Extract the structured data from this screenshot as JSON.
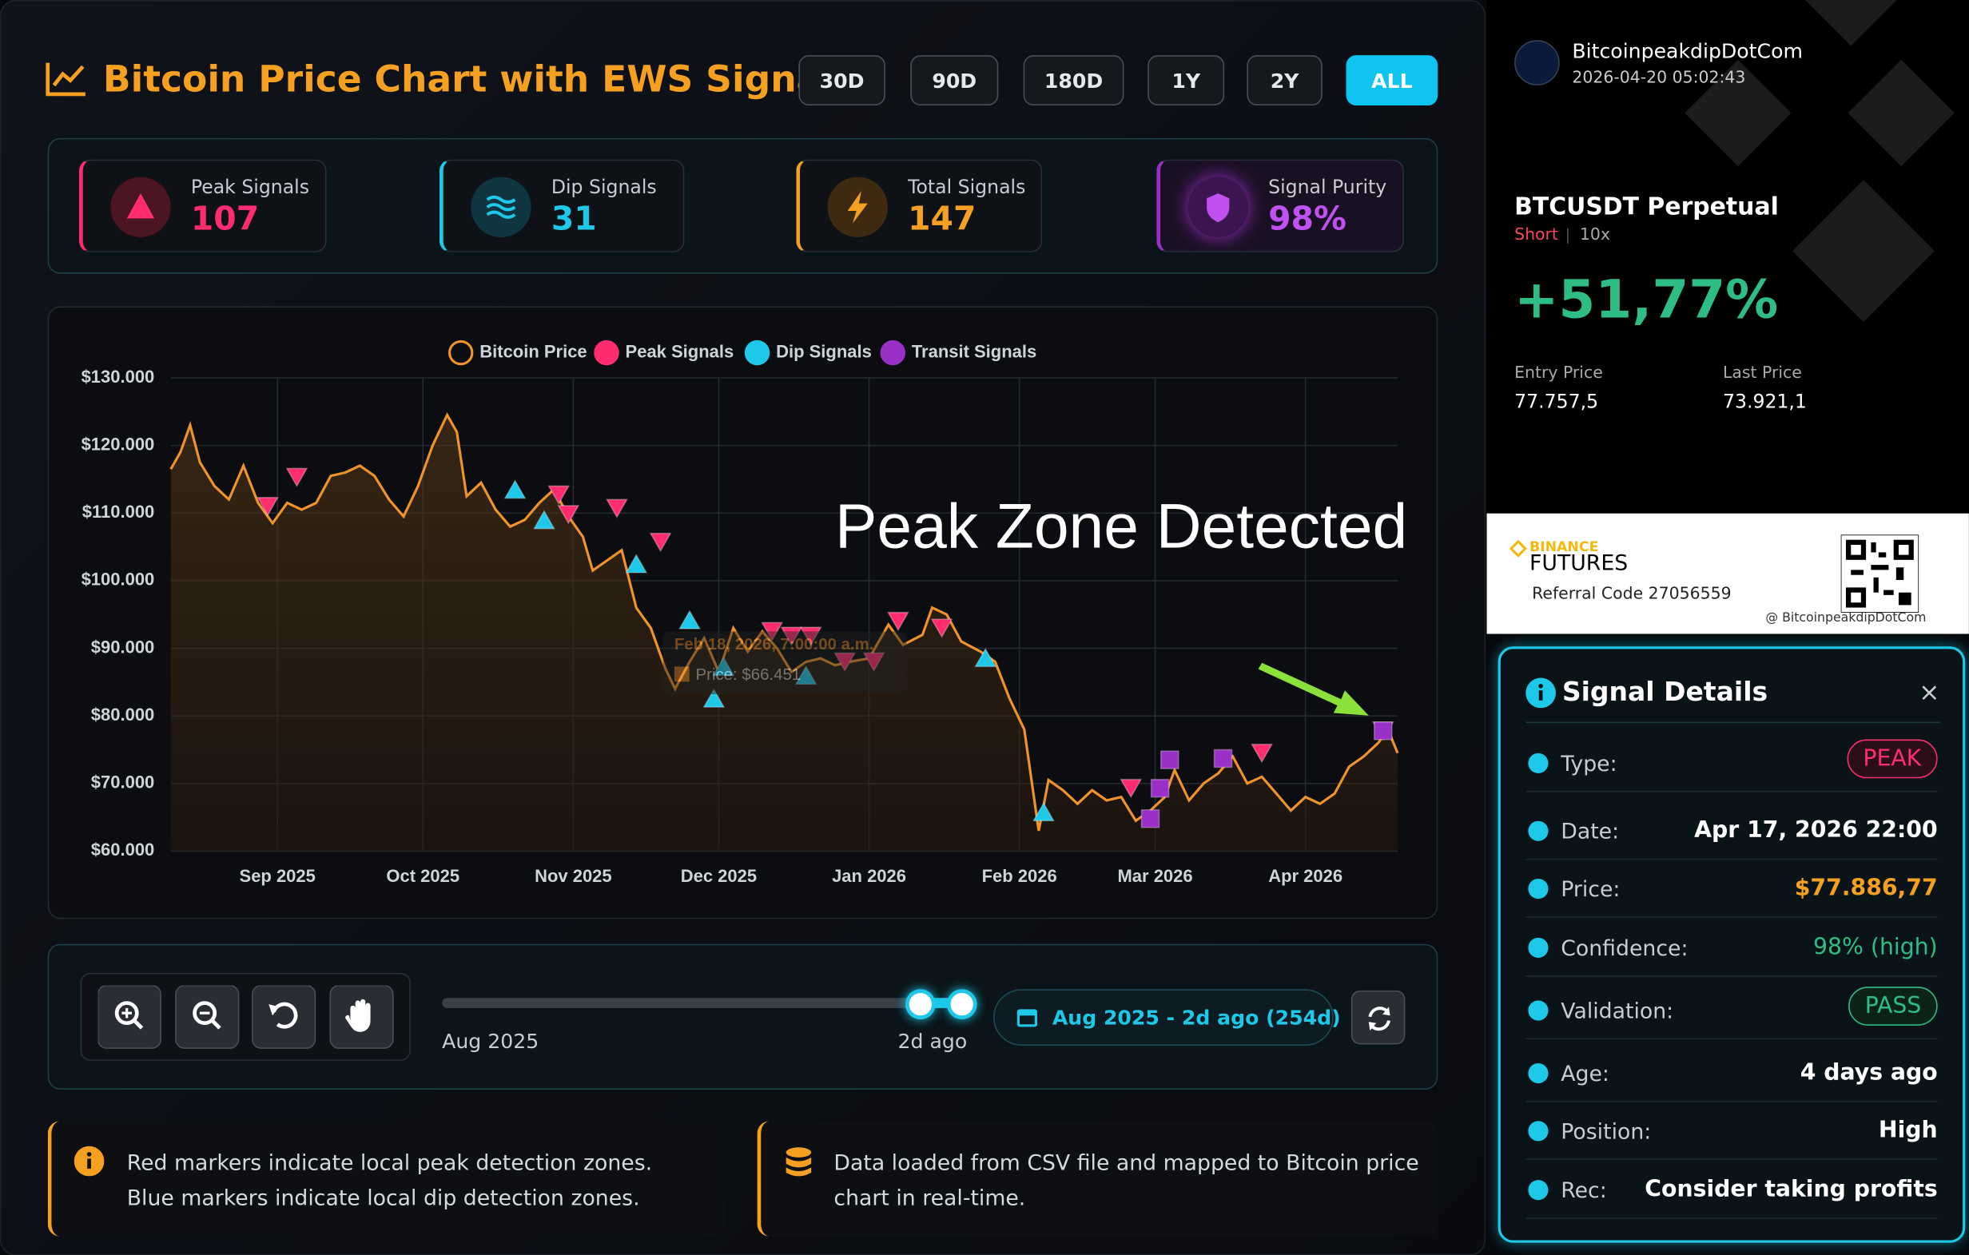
{
  "header": {
    "title": "Bitcoin Price Chart with EWS Signals",
    "ranges": [
      "30D",
      "90D",
      "180D",
      "1Y",
      "2Y",
      "ALL"
    ]
  },
  "stats": [
    {
      "label": "Peak Signals",
      "value": "107"
    },
    {
      "label": "Dip Signals",
      "value": "31"
    },
    {
      "label": "Total Signals",
      "value": "147"
    },
    {
      "label": "Signal Purity",
      "value": "98%"
    }
  ],
  "chart_data": {
    "type": "line",
    "legend": "top",
    "grid": true,
    "xlim": [
      "2025-08-10",
      "2026-04-20"
    ],
    "xticks": [
      {
        "value": "2025-09-01",
        "label": "Sep 2025"
      },
      {
        "value": "2025-10-01",
        "label": "Oct 2025"
      },
      {
        "value": "2025-11-01",
        "label": "Nov 2025"
      },
      {
        "value": "2025-12-01",
        "label": "Dec 2025"
      },
      {
        "value": "2026-01-01",
        "label": "Jan 2026"
      },
      {
        "value": "2026-02-01",
        "label": "Feb 2026"
      },
      {
        "value": "2026-03-01",
        "label": "Mar 2026"
      },
      {
        "value": "2026-04-01",
        "label": "Apr 2026"
      }
    ],
    "ylim": [
      60000,
      130000
    ],
    "yticks": [
      {
        "value": 60000,
        "label": "$60.000"
      },
      {
        "value": 70000,
        "label": "$70.000"
      },
      {
        "value": 80000,
        "label": "$80.000"
      },
      {
        "value": 90000,
        "label": "$90.000"
      },
      {
        "value": 100000,
        "label": "$100.000"
      },
      {
        "value": 110000,
        "label": "$110.000"
      },
      {
        "value": 120000,
        "label": "$120.000"
      },
      {
        "value": 130000,
        "label": "$130.000"
      }
    ],
    "series": [
      {
        "name": "Bitcoin Price",
        "color": "#f0932b",
        "x": [
          "2025-08-10",
          "2025-08-12",
          "2025-08-14",
          "2025-08-16",
          "2025-08-19",
          "2025-08-22",
          "2025-08-25",
          "2025-08-28",
          "2025-08-31",
          "2025-09-03",
          "2025-09-06",
          "2025-09-09",
          "2025-09-12",
          "2025-09-15",
          "2025-09-18",
          "2025-09-21",
          "2025-09-24",
          "2025-09-27",
          "2025-09-30",
          "2025-10-03",
          "2025-10-06",
          "2025-10-08",
          "2025-10-10",
          "2025-10-13",
          "2025-10-16",
          "2025-10-19",
          "2025-10-22",
          "2025-10-25",
          "2025-10-28",
          "2025-10-31",
          "2025-11-03",
          "2025-11-05",
          "2025-11-08",
          "2025-11-11",
          "2025-11-14",
          "2025-11-17",
          "2025-11-20",
          "2025-11-22",
          "2025-11-25",
          "2025-11-28",
          "2025-12-01",
          "2025-12-04",
          "2025-12-07",
          "2025-12-10",
          "2025-12-13",
          "2025-12-16",
          "2025-12-19",
          "2025-12-22",
          "2025-12-25",
          "2025-12-28",
          "2026-01-01",
          "2026-01-05",
          "2026-01-08",
          "2026-01-12",
          "2026-01-14",
          "2026-01-17",
          "2026-01-20",
          "2026-01-24",
          "2026-01-27",
          "2026-01-30",
          "2026-02-02",
          "2026-02-05",
          "2026-02-07",
          "2026-02-10",
          "2026-02-13",
          "2026-02-16",
          "2026-02-19",
          "2026-02-22",
          "2026-02-25",
          "2026-02-28",
          "2026-03-03",
          "2026-03-05",
          "2026-03-08",
          "2026-03-11",
          "2026-03-14",
          "2026-03-17",
          "2026-03-20",
          "2026-03-23",
          "2026-03-26",
          "2026-03-29",
          "2026-04-01",
          "2026-04-04",
          "2026-04-07",
          "2026-04-10",
          "2026-04-13",
          "2026-04-16",
          "2026-04-18",
          "2026-04-20"
        ],
        "values": [
          116500,
          119000,
          123000,
          117500,
          114000,
          112000,
          117000,
          111500,
          108500,
          111500,
          110500,
          111500,
          115500,
          116000,
          117000,
          115500,
          112000,
          109500,
          114000,
          120000,
          124500,
          122000,
          112500,
          114500,
          110500,
          108000,
          109000,
          111500,
          113500,
          109500,
          106500,
          101500,
          103000,
          104500,
          96000,
          93000,
          87000,
          84000,
          88000,
          91500,
          86500,
          93000,
          89500,
          92500,
          90000,
          86500,
          88000,
          88500,
          87500,
          88000,
          88500,
          93500,
          90500,
          92000,
          96000,
          95000,
          91000,
          89500,
          88000,
          82500,
          78000,
          63000,
          70500,
          69000,
          67000,
          69000,
          67500,
          68000,
          64500,
          66000,
          68000,
          72000,
          67500,
          70000,
          71500,
          74000,
          70000,
          71000,
          68500,
          66000,
          68000,
          67000,
          68500,
          72500,
          74000,
          76000,
          78000,
          74500
        ]
      },
      {
        "name": "Peak Signals",
        "color": "#ff2d6f",
        "marker": "triangle-down",
        "x": [
          "2025-08-30",
          "2025-09-05",
          "2025-10-29",
          "2025-10-31",
          "2025-11-10",
          "2025-11-19",
          "2025-12-12",
          "2025-12-16",
          "2025-12-20",
          "2025-12-27",
          "2026-01-02",
          "2026-01-07",
          "2026-01-16",
          "2026-02-24",
          "2026-03-23",
          "2026-04-17"
        ],
        "values": [
          111000,
          115300,
          112700,
          109800,
          110700,
          105700,
          92500,
          91800,
          91800,
          88000,
          88000,
          94000,
          93000,
          69300,
          74500,
          77800
        ]
      },
      {
        "name": "Dip Signals",
        "color": "#1ec8e8",
        "marker": "triangle-up",
        "x": [
          "2025-10-20",
          "2025-10-26",
          "2025-11-14",
          "2025-11-25",
          "2025-11-30",
          "2025-12-02",
          "2025-12-19",
          "2026-01-25",
          "2026-02-06"
        ],
        "values": [
          113500,
          109000,
          102500,
          94200,
          82600,
          87300,
          86000,
          88600,
          65800
        ]
      },
      {
        "name": "Transit Signals",
        "color": "#9b30c8",
        "marker": "square",
        "x": [
          "2026-02-28",
          "2026-03-02",
          "2026-03-04",
          "2026-03-15",
          "2026-04-17"
        ],
        "values": [
          64800,
          69300,
          73500,
          73700,
          77800
        ]
      }
    ],
    "annotations": [
      "Peak Zone Detected"
    ],
    "tooltip": {
      "date": "Feb 18, 2026, 7:00:00 a.m.",
      "price": "Price: $66.451"
    }
  },
  "controls": {
    "slider_start": "Aug 2025",
    "slider_end": "2d ago",
    "range_label": "Aug 2025 - 2d ago (254d)"
  },
  "notes": [
    "Red markers indicate local peak detection zones. Blue markers indicate local dip detection zones.",
    "Data loaded from CSV file and mapped to Bitcoin price chart in real-time."
  ],
  "share_card": {
    "user": "BitcoinpeakdipDotCom",
    "timestamp": "2026-04-20 05:02:43",
    "pair": "BTCUSDT Perpetual",
    "side": "Short",
    "leverage": "10x",
    "pnl": "+51,77%",
    "entry_label": "Entry Price",
    "entry": "77.757,5",
    "last_label": "Last Price",
    "last": "73.921,1",
    "brand": "BINANCE",
    "product": "FUTURES",
    "referral": "Referral Code 27056559",
    "handle": "@ BitcoinpeakdipDotCom"
  },
  "signal_details": {
    "title": "Signal Details",
    "close": "×",
    "rows": [
      [
        "Type:",
        "PEAK"
      ],
      [
        "Date:",
        "Apr 17, 2026 22:00"
      ],
      [
        "Price:",
        "$77.886,77"
      ],
      [
        "Confidence:",
        "98% (high)"
      ],
      [
        "Validation:",
        "PASS"
      ],
      [
        "Age:",
        "4 days ago"
      ],
      [
        "Position:",
        "High"
      ],
      [
        "Rec:",
        "Consider taking profits"
      ]
    ]
  }
}
